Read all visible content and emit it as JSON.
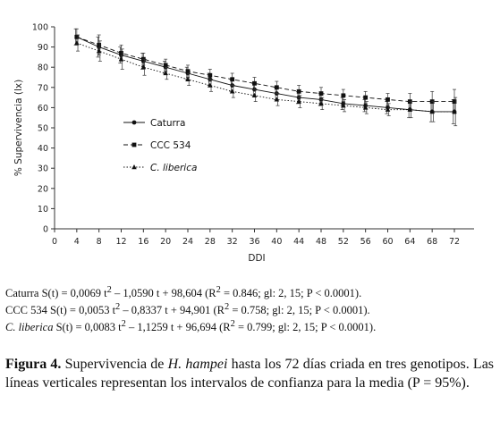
{
  "chart_data": {
    "type": "line",
    "xlabel": "DDI",
    "ylabel": "% Supervivencia (lx)",
    "xlim": [
      0,
      76
    ],
    "ylim": [
      0,
      100
    ],
    "x_ticks": [
      0,
      4,
      8,
      12,
      16,
      20,
      24,
      28,
      32,
      36,
      40,
      44,
      48,
      52,
      56,
      60,
      64,
      68,
      72
    ],
    "y_ticks": [
      0,
      10,
      20,
      30,
      40,
      50,
      60,
      70,
      80,
      90,
      100
    ],
    "x": [
      4,
      8,
      12,
      16,
      20,
      24,
      28,
      32,
      36,
      40,
      44,
      48,
      52,
      56,
      60,
      64,
      68,
      72
    ],
    "legend_position": "middle-left",
    "series": [
      {
        "name": "Caturra",
        "marker": "circle",
        "dash": "",
        "values": [
          95,
          90,
          86,
          83,
          80,
          77,
          74,
          71,
          69,
          67,
          65,
          64,
          62,
          61,
          60,
          59,
          58,
          58
        ],
        "err": [
          4,
          5,
          4,
          4,
          3,
          3,
          3,
          3,
          3,
          3,
          3,
          3,
          3,
          3,
          3,
          4,
          5,
          6
        ]
      },
      {
        "name": "CCC 534",
        "marker": "square",
        "dash": "5,3",
        "values": [
          95,
          91,
          87,
          84,
          81,
          78,
          76,
          74,
          72,
          70,
          68,
          67,
          66,
          65,
          64,
          63,
          63,
          63
        ],
        "err": [
          4,
          5,
          4,
          3,
          3,
          3,
          3,
          3,
          3,
          3,
          3,
          3,
          3,
          3,
          3,
          4,
          5,
          6
        ]
      },
      {
        "name": "C. liberica",
        "marker": "triangle",
        "dash": "1.5,2",
        "values": [
          92,
          88,
          84,
          80,
          77,
          74,
          71,
          68,
          66,
          64,
          63,
          62,
          61,
          60,
          59,
          59,
          58,
          58
        ],
        "err": [
          4,
          5,
          5,
          4,
          3,
          3,
          3,
          3,
          3,
          3,
          3,
          3,
          3,
          3,
          3,
          4,
          5,
          7
        ]
      }
    ]
  },
  "equations": {
    "caturra": {
      "genotype": "Caturra",
      "lhs": " S(t) = 0,0069 t",
      "mid": " – 1,0590 t + 98,604  (R",
      "rhs": " = 0.846; gl: 2, 15; P < 0.0001)."
    },
    "ccc534": {
      "genotype": "CCC 534",
      "lhs": " S(t) = 0,0053 t",
      "mid": " – 0,8337 t + 94,901  (R",
      "rhs": " = 0.758; gl: 2, 15; P < 0.0001)."
    },
    "liberica": {
      "genotype": "C. liberica",
      "lhs": " S(t) = 0,0083 t",
      "mid": " – 1,1259 t + 96,694  (R",
      "rhs": " = 0.799; gl: 2, 15; P < 0.0001)."
    },
    "superscript": "2"
  },
  "caption": {
    "label": "Figura 4.",
    "text_before": " Supervivencia de ",
    "species": "H. hampei",
    "text_after": " hasta los 72 días criada en tres genotipos. Las líneas verticales representan los intervalos de confianza para la media (P = 95%)."
  }
}
